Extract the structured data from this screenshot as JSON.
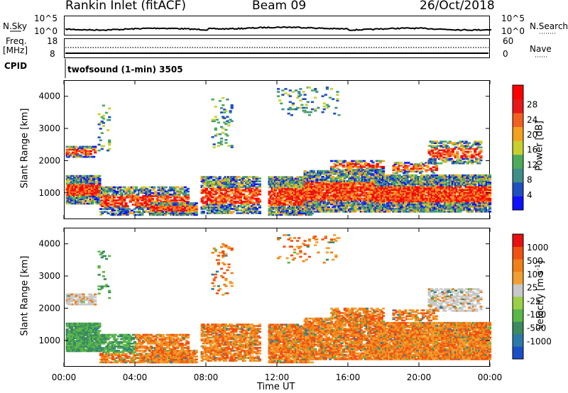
{
  "header": {
    "station": "Rankin Inlet (fitACF)",
    "beam": "Beam 09",
    "date": "26/Oct/2018"
  },
  "noise_panel": {
    "left_label": "N.Sky",
    "left_ticks": [
      "10^5",
      "10^0"
    ],
    "right_ticks": [
      "10^5",
      "10^0"
    ],
    "right_label": "N.Search"
  },
  "freq_panel": {
    "left_label_1": "Freq.",
    "left_label_2": "[MHz]",
    "left_ticks": [
      "18",
      "8"
    ],
    "right_ticks": [
      "60",
      "0"
    ],
    "right_label": "Nave",
    "cpid_label": "CPID",
    "mode_text": "twofsound (1-min) 3505"
  },
  "chart_data": [
    {
      "type": "heatmap",
      "name": "power",
      "ylabel": "Slant Range [km]",
      "xlabel": "",
      "x_ticks": [
        "00:00",
        "04:00",
        "08:00",
        "12:00",
        "16:00",
        "20:00",
        "00:00"
      ],
      "y_ticks": [
        "1000",
        "2000",
        "3000",
        "4000"
      ],
      "ylim": [
        180,
        4500
      ],
      "xlim_hours": [
        0,
        24
      ],
      "colorbar": {
        "label": "Power [dB]",
        "ticks": [
          "4",
          "8",
          "12",
          "16",
          "20",
          "24",
          "28"
        ],
        "colors": [
          "#1010ff",
          "#2050c0",
          "#3f8e8a",
          "#4cab5c",
          "#c8d030",
          "#f4a020",
          "#f26020",
          "#e81818",
          "#ff0000"
        ]
      }
    },
    {
      "type": "heatmap",
      "name": "velocity",
      "ylabel": "Slant Range [km]",
      "xlabel": "Time UT",
      "x_ticks": [
        "00:00",
        "04:00",
        "08:00",
        "12:00",
        "16:00",
        "20:00",
        "00:00"
      ],
      "y_ticks": [
        "1000",
        "2000",
        "3000",
        "4000"
      ],
      "ylim": [
        180,
        4500
      ],
      "xlim_hours": [
        0,
        24
      ],
      "colorbar": {
        "label": "Velocity [m s",
        "label_sup": "-1",
        "label_end": "]",
        "ticks": [
          "1000",
          "500",
          "100",
          "25",
          "-25",
          "-100",
          "-500",
          "-1000"
        ],
        "colors": [
          "#1a4ec8",
          "#2a7aa8",
          "#3c8a60",
          "#5ab848",
          "#9ad048",
          "#c8c8c8",
          "#f0a030",
          "#f08018",
          "#f05010",
          "#e81010"
        ]
      }
    }
  ]
}
